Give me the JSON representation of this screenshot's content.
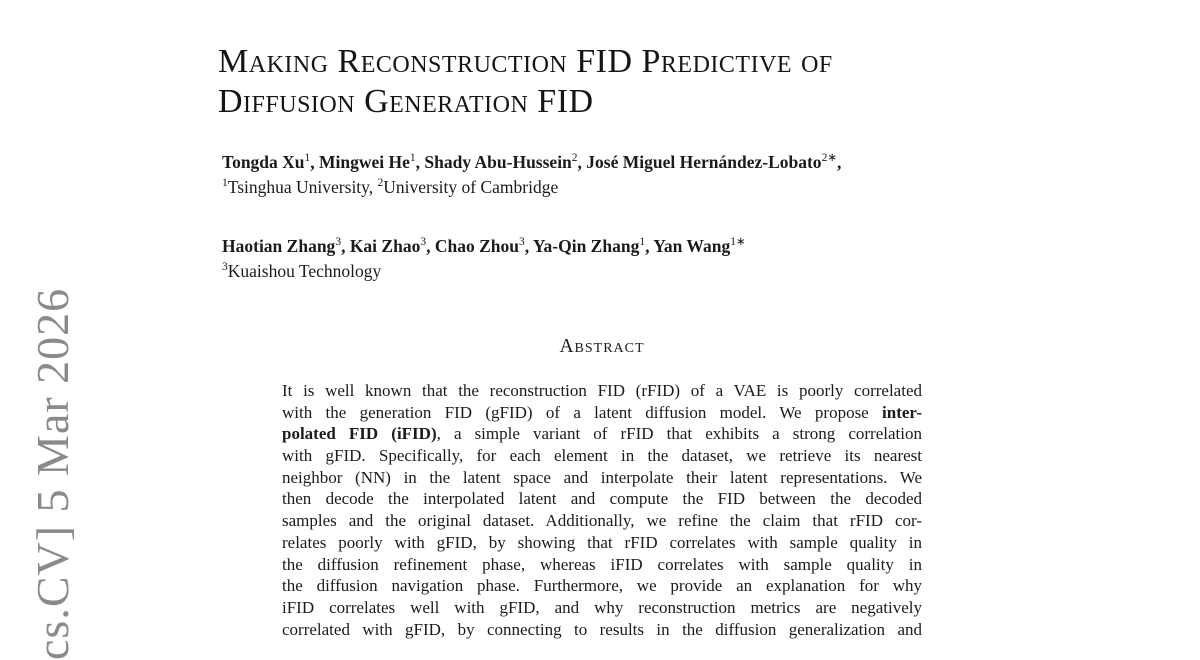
{
  "watermark": {
    "text": "cs.CV] 5 Mar 2026",
    "color": "#8a8a8a"
  },
  "title": {
    "line1": "Making Reconstruction FID Predictive of",
    "line2": "Diffusion Generation FID"
  },
  "authors": {
    "group1": {
      "names": [
        {
          "name": "Tongda Xu",
          "sup": "1",
          "sep": ", "
        },
        {
          "name": "Mingwei He",
          "sup": "1",
          "sep": ", "
        },
        {
          "name": "Shady Abu-Hussein",
          "sup": "2",
          "sep": ", "
        },
        {
          "name": "José Miguel Hernández-Lobato",
          "sup": "2∗",
          "sep": ","
        }
      ],
      "affiliations": [
        {
          "sup": "1",
          "text": "Tsinghua University, "
        },
        {
          "sup": "2",
          "text": "University of Cambridge"
        }
      ]
    },
    "group2": {
      "names": [
        {
          "name": "Haotian Zhang",
          "sup": "3",
          "sep": ", "
        },
        {
          "name": "Kai Zhao",
          "sup": "3",
          "sep": ", "
        },
        {
          "name": "Chao Zhou",
          "sup": "3",
          "sep": ", "
        },
        {
          "name": "Ya-Qin Zhang",
          "sup": "1",
          "sep": ", "
        },
        {
          "name": "Yan Wang",
          "sup": "1∗",
          "sep": ""
        }
      ],
      "affiliations": [
        {
          "sup": "3",
          "text": "Kuaishou Technology"
        }
      ]
    }
  },
  "abstract": {
    "heading": "Abstract",
    "lines": [
      [
        {
          "t": "It is well known that the reconstruction FID (rFID) of a VAE is poorly correlated",
          "b": false
        }
      ],
      [
        {
          "t": "with the generation FID (gFID) of a latent diffusion model.  We propose ",
          "b": false
        },
        {
          "t": "inter-",
          "b": true
        }
      ],
      [
        {
          "t": "polated FID (iFID)",
          "b": true
        },
        {
          "t": ", a simple variant of rFID that exhibits a strong correlation",
          "b": false
        }
      ],
      [
        {
          "t": "with gFID. Specifically, for each element in the dataset, we retrieve its nearest",
          "b": false
        }
      ],
      [
        {
          "t": "neighbor (NN) in the latent space and interpolate their latent representations.  We",
          "b": false
        }
      ],
      [
        {
          "t": "then decode the interpolated latent and compute the FID between the decoded",
          "b": false
        }
      ],
      [
        {
          "t": "samples and the original dataset.  Additionally, we refine the claim that rFID cor-",
          "b": false
        }
      ],
      [
        {
          "t": "relates poorly with gFID, by showing that rFID correlates with sample quality in",
          "b": false
        }
      ],
      [
        {
          "t": "the diffusion refinement phase, whereas iFID correlates with sample quality in",
          "b": false
        }
      ],
      [
        {
          "t": "the diffusion navigation phase.  Furthermore, we provide an explanation for why",
          "b": false
        }
      ],
      [
        {
          "t": "iFID correlates well with gFID, and why reconstruction metrics are negatively",
          "b": false
        }
      ],
      [
        {
          "t": "correlated with gFID, by connecting to results in the diffusion generalization and",
          "b": false
        }
      ]
    ]
  }
}
